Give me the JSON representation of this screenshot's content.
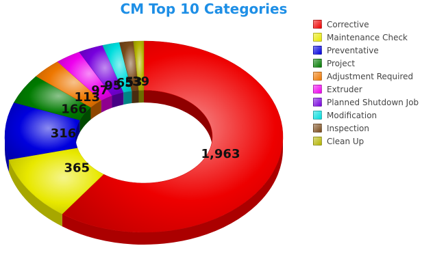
{
  "chart_data": {
    "type": "pie",
    "variant": "donut-3d",
    "title": "CM Top 10 Categories",
    "legend_position": "right",
    "categories": [
      "Corrective",
      "Maintenance Check",
      "Preventative",
      "Project",
      "Adjustment Required",
      "Extruder",
      "Planned Shutdown Job",
      "Modification",
      "Inspection",
      "Clean Up"
    ],
    "values": [
      1963,
      365,
      316,
      166,
      113,
      97,
      95,
      65,
      53,
      39
    ],
    "value_labels": [
      "1,963",
      "365",
      "316",
      "166",
      "113",
      "97",
      "95",
      "65",
      "53",
      "39"
    ],
    "colors": [
      "#ee0000",
      "#e8e800",
      "#0000dd",
      "#007a00",
      "#ee7700",
      "#ee00ee",
      "#7700dd",
      "#00dddd",
      "#7a4a1a",
      "#b4b400"
    ]
  }
}
